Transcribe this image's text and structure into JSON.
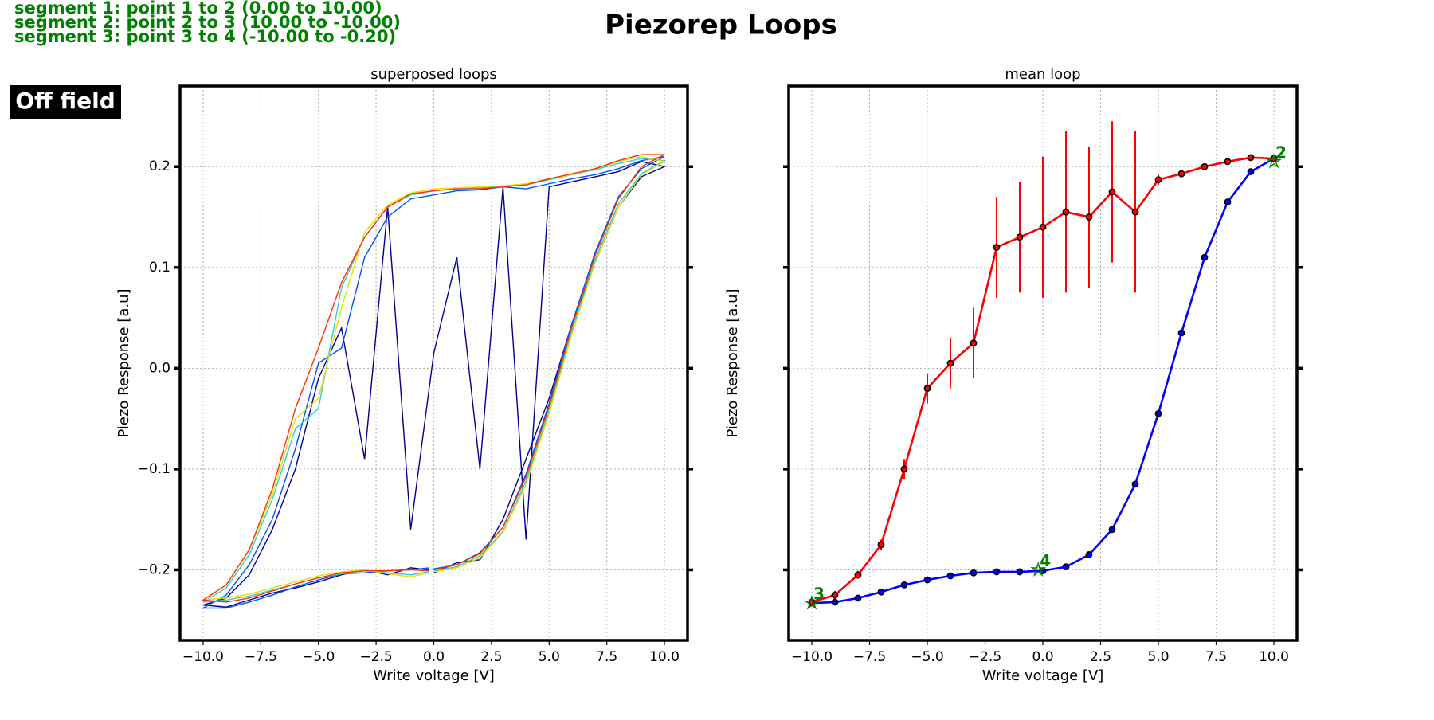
{
  "title": "Piezorep Loops",
  "field_label": "Off field",
  "annotations": [
    "segment 1: point 1 to 2 (0.00 to 10.00)",
    "segment 2: point 2 to 3 (10.00 to -10.00)",
    "segment 3: point 3 to 4 (-10.00 to -0.20)"
  ],
  "chart_data": [
    {
      "type": "line",
      "title": "superposed loops",
      "xlabel": "Write voltage [V]",
      "ylabel": "Piezo Response [a.u]",
      "xlim": [
        -11,
        11
      ],
      "ylim": [
        -0.27,
        0.28
      ],
      "grid": true,
      "xticks": [
        {
          "value": -10,
          "label": "−10.0"
        },
        {
          "value": -7.5,
          "label": "−7.5"
        },
        {
          "value": -5,
          "label": "−5.0"
        },
        {
          "value": -2.5,
          "label": "−2.5"
        },
        {
          "value": 0,
          "label": "0.0"
        },
        {
          "value": 2.5,
          "label": "2.5"
        },
        {
          "value": 5,
          "label": "5.0"
        },
        {
          "value": 7.5,
          "label": "7.5"
        },
        {
          "value": 10,
          "label": "10.0"
        }
      ],
      "yticks": [
        {
          "value": -0.2,
          "label": "−0.2"
        },
        {
          "value": -0.1,
          "label": "−0.1"
        },
        {
          "value": 0,
          "label": "0.0"
        },
        0.1,
        0.2
      ],
      "show_ytick_labels": true,
      "x": [
        0,
        1,
        2,
        3,
        4,
        5,
        6,
        7,
        8,
        9,
        10,
        9,
        8,
        7,
        6,
        5,
        4,
        3,
        2,
        1,
        0,
        -1,
        -2,
        -3,
        -4,
        -5,
        -6,
        -7,
        -8,
        -9,
        -10,
        -9,
        -8,
        -7,
        -6,
        -5,
        -4,
        -3,
        -2,
        -1,
        -0.2
      ],
      "series": [
        {
          "color": "#00008f",
          "values": [
            -0.203,
            -0.193,
            -0.19,
            -0.15,
            -0.09,
            -0.03,
            0.045,
            0.105,
            0.16,
            0.19,
            0.2,
            0.205,
            0.195,
            0.19,
            0.185,
            0.18,
            -0.17,
            0.18,
            -0.1,
            0.11,
            0.015,
            -0.16,
            0.16,
            -0.09,
            0.04,
            -0.01,
            -0.1,
            -0.16,
            -0.205,
            -0.228,
            -0.235,
            -0.237,
            -0.23,
            -0.223,
            -0.218,
            -0.212,
            -0.205,
            -0.2,
            -0.205,
            -0.198,
            -0.2
          ]
        },
        {
          "color": "#0050ff",
          "values": [
            -0.199,
            -0.195,
            -0.183,
            -0.158,
            -0.105,
            -0.035,
            0.045,
            0.115,
            0.17,
            0.198,
            0.21,
            0.206,
            0.198,
            0.192,
            0.188,
            0.183,
            0.178,
            0.18,
            0.177,
            0.176,
            0.172,
            0.168,
            0.15,
            0.11,
            0.02,
            0.005,
            -0.08,
            -0.15,
            -0.195,
            -0.225,
            -0.238,
            -0.238,
            -0.232,
            -0.225,
            -0.217,
            -0.21,
            -0.204,
            -0.203,
            -0.201,
            -0.2,
            -0.198
          ]
        },
        {
          "color": "#30d0d0",
          "values": [
            -0.201,
            -0.197,
            -0.186,
            -0.162,
            -0.112,
            -0.042,
            0.038,
            0.108,
            0.163,
            0.193,
            0.206,
            0.208,
            0.203,
            0.197,
            0.192,
            0.187,
            0.182,
            0.18,
            0.179,
            0.178,
            0.176,
            0.172,
            0.16,
            0.13,
            0.08,
            -0.04,
            -0.06,
            -0.13,
            -0.185,
            -0.218,
            -0.232,
            -0.23,
            -0.226,
            -0.22,
            -0.214,
            -0.208,
            -0.204,
            -0.201,
            -0.203,
            -0.205,
            -0.202
          ]
        },
        {
          "color": "#e8e000",
          "values": [
            -0.202,
            -0.198,
            -0.188,
            -0.163,
            -0.115,
            -0.045,
            0.035,
            0.105,
            0.16,
            0.192,
            0.205,
            0.21,
            0.205,
            0.198,
            0.192,
            0.188,
            0.183,
            0.181,
            0.18,
            0.179,
            0.178,
            0.174,
            0.162,
            0.135,
            0.06,
            -0.03,
            -0.05,
            -0.125,
            -0.18,
            -0.215,
            -0.23,
            -0.228,
            -0.224,
            -0.218,
            -0.212,
            -0.206,
            -0.202,
            -0.2,
            -0.204,
            -0.207,
            -0.203
          ]
        },
        {
          "color": "#ff3000",
          "values": [
            -0.2,
            -0.195,
            -0.184,
            -0.158,
            -0.108,
            -0.038,
            0.042,
            0.112,
            0.168,
            0.2,
            0.212,
            0.212,
            0.206,
            0.198,
            0.193,
            0.188,
            0.182,
            0.18,
            0.178,
            0.178,
            0.176,
            0.173,
            0.16,
            0.13,
            0.085,
            0.02,
            -0.04,
            -0.12,
            -0.18,
            -0.215,
            -0.23,
            -0.232,
            -0.228,
            -0.221,
            -0.214,
            -0.208,
            -0.203,
            -0.201,
            -0.201,
            -0.2,
            -0.201
          ]
        }
      ]
    },
    {
      "type": "errorbar",
      "title": "mean loop",
      "xlabel": "Write voltage [V]",
      "ylabel": "Piezo Response [a.u]",
      "xlim": [
        -11,
        11
      ],
      "ylim": [
        -0.27,
        0.28
      ],
      "grid": true,
      "xticks": [
        {
          "value": -10,
          "label": "−10.0"
        },
        {
          "value": -7.5,
          "label": "−7.5"
        },
        {
          "value": -5,
          "label": "−5.0"
        },
        {
          "value": -2.5,
          "label": "−2.5"
        },
        {
          "value": 0,
          "label": "0.0"
        },
        {
          "value": 2.5,
          "label": "2.5"
        },
        {
          "value": 5,
          "label": "5.0"
        },
        {
          "value": 7.5,
          "label": "7.5"
        },
        {
          "value": 10,
          "label": "10.0"
        }
      ],
      "yticks": [
        -0.2,
        -0.1,
        0,
        0.1,
        0.2
      ],
      "show_ytick_labels": false,
      "series": [
        {
          "color": "#0000ff",
          "x": [
            -10,
            -9,
            -8,
            -7,
            -6,
            -5,
            -4,
            -3,
            -2,
            -1,
            0,
            1,
            2,
            3,
            4,
            5,
            6,
            7,
            8,
            9,
            10
          ],
          "values": [
            -0.233,
            -0.232,
            -0.228,
            -0.222,
            -0.215,
            -0.21,
            -0.206,
            -0.203,
            -0.202,
            -0.202,
            -0.201,
            -0.197,
            -0.185,
            -0.16,
            -0.115,
            -0.045,
            0.035,
            0.11,
            0.165,
            0.195,
            0.208
          ]
        },
        {
          "color": "#ff0000",
          "x": [
            -10,
            -9,
            -8,
            -7,
            -6,
            -5,
            -4,
            -3,
            -2,
            -1,
            0,
            1,
            2,
            3,
            4,
            5,
            6,
            7,
            8,
            9,
            10
          ],
          "values": [
            -0.232,
            -0.225,
            -0.205,
            -0.175,
            -0.1,
            -0.02,
            0.005,
            0.025,
            0.12,
            0.13,
            0.14,
            0.155,
            0.15,
            0.175,
            0.155,
            0.187,
            0.193,
            0.2,
            0.205,
            0.209,
            0.208
          ],
          "errors": [
            0.002,
            0.004,
            0.004,
            0.005,
            0.01,
            0.015,
            0.025,
            0.035,
            0.05,
            0.055,
            0.07,
            0.08,
            0.07,
            0.07,
            0.08,
            0.005,
            0.004,
            0.003,
            0.003,
            0.002,
            0.002
          ]
        }
      ],
      "markers": [
        {
          "label": "2",
          "x": 10,
          "y": 0.205
        },
        {
          "label": "3",
          "x": -10,
          "y": -0.233
        },
        {
          "label": "4",
          "x": -0.2,
          "y": -0.2
        }
      ],
      "marker_color": "#008000"
    }
  ]
}
